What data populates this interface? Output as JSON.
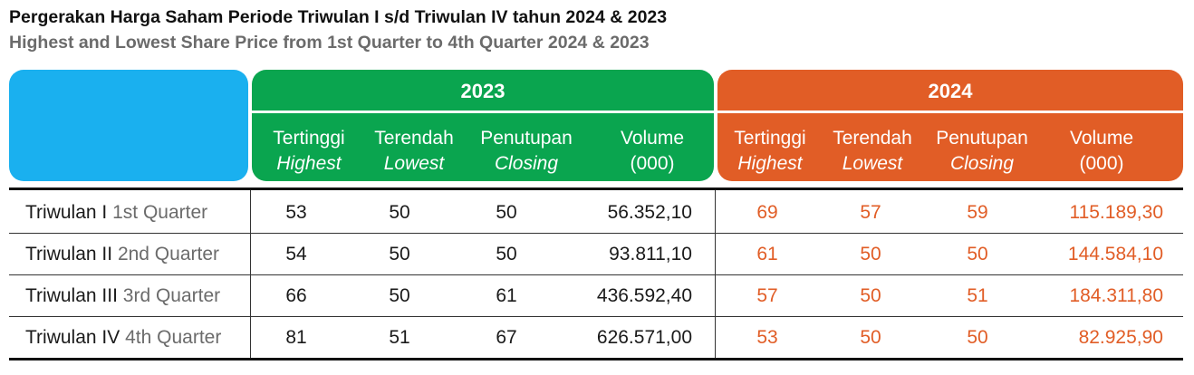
{
  "title": "Pergerakan Harga Saham Periode Triwulan I s/d Triwulan IV tahun 2024 & 2023",
  "subtitle": "Highest and Lowest Share Price from 1st Quarter to 4th Quarter 2024 & 2023",
  "colors": {
    "blue": "#1ab0ef",
    "green_2023": "#0aa54f",
    "orange_2024": "#e15d26"
  },
  "groups": [
    {
      "year": "2023",
      "columns": [
        {
          "id": "Tertinggi",
          "en": "Highest"
        },
        {
          "id": "Terendah",
          "en": "Lowest"
        },
        {
          "id": "Penutupan",
          "en": "Closing"
        },
        {
          "id": "Volume",
          "en": "(000)"
        }
      ]
    },
    {
      "year": "2024",
      "columns": [
        {
          "id": "Tertinggi",
          "en": "Highest"
        },
        {
          "id": "Terendah",
          "en": "Lowest"
        },
        {
          "id": "Penutupan",
          "en": "Closing"
        },
        {
          "id": "Volume",
          "en": "(000)"
        }
      ]
    }
  ],
  "rows": [
    {
      "label_id": "Triwulan I",
      "label_en": "1st Quarter",
      "y2023": [
        "53",
        "50",
        "50",
        "56.352,10"
      ],
      "y2024": [
        "69",
        "57",
        "59",
        "115.189,30"
      ]
    },
    {
      "label_id": "Triwulan II",
      "label_en": "2nd Quarter",
      "y2023": [
        "54",
        "50",
        "50",
        "93.811,10"
      ],
      "y2024": [
        "61",
        "50",
        "50",
        "144.584,10"
      ]
    },
    {
      "label_id": "Triwulan III",
      "label_en": "3rd Quarter",
      "y2023": [
        "66",
        "50",
        "61",
        "436.592,40"
      ],
      "y2024": [
        "57",
        "50",
        "51",
        "184.311,80"
      ]
    },
    {
      "label_id": "Triwulan IV",
      "label_en": "4th Quarter",
      "y2023": [
        "81",
        "51",
        "67",
        "626.571,00"
      ],
      "y2024": [
        "53",
        "50",
        "50",
        "82.925,90"
      ]
    }
  ]
}
